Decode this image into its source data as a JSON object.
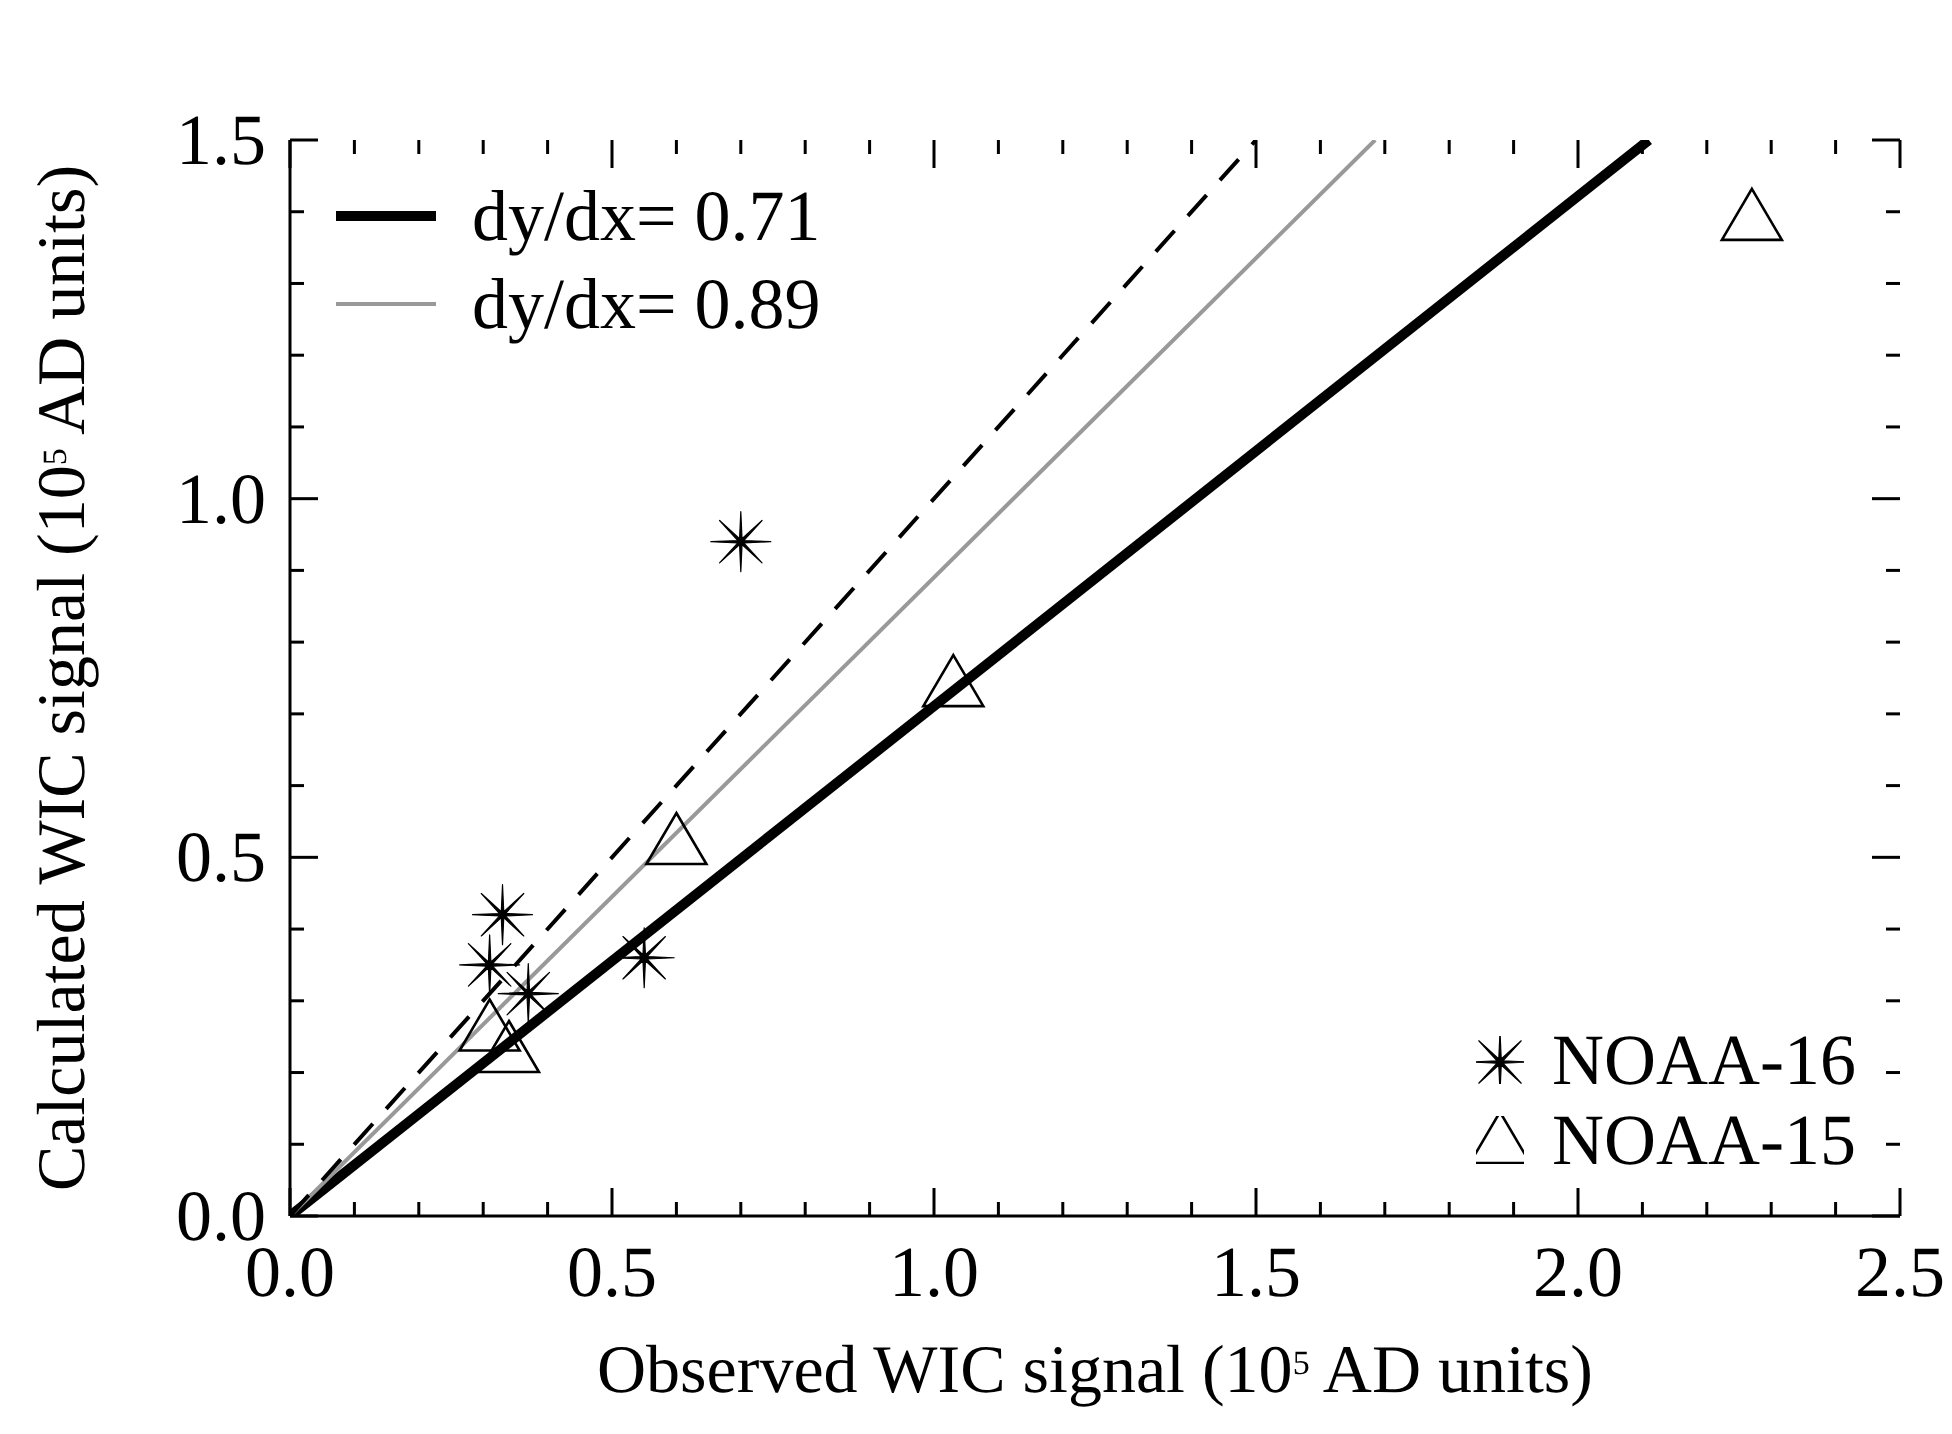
{
  "chart_data": {
    "type": "scatter",
    "xlabel": "Observed WIC signal (10$^{5}$ AD units)",
    "ylabel": "Calculated WIC signal (10$^{5}$ AD units)",
    "xlim": [
      0,
      2.5
    ],
    "ylim": [
      0,
      1.5
    ],
    "xticks": [
      {
        "value": 0,
        "label": "0.0"
      },
      {
        "value": 0.1,
        "label": null
      },
      {
        "value": 0.2,
        "label": null
      },
      {
        "value": 0.3,
        "label": null
      },
      {
        "value": 0.4,
        "label": null
      },
      0.5,
      {
        "value": 0.6,
        "label": null
      },
      {
        "value": 0.7,
        "label": null
      },
      {
        "value": 0.8,
        "label": null
      },
      {
        "value": 0.9,
        "label": null
      },
      {
        "value": 1,
        "label": "1.0"
      },
      {
        "value": 1.1,
        "label": null
      },
      {
        "value": 1.2,
        "label": null
      },
      {
        "value": 1.3,
        "label": null
      },
      {
        "value": 1.4,
        "label": null
      },
      1.5,
      {
        "value": 1.6,
        "label": null
      },
      {
        "value": 1.7,
        "label": null
      },
      {
        "value": 1.8,
        "label": null
      },
      {
        "value": 1.9,
        "label": null
      },
      {
        "value": 2,
        "label": "2.0"
      },
      {
        "value": 2.1,
        "label": null
      },
      {
        "value": 2.2,
        "label": null
      },
      {
        "value": 2.3,
        "label": null
      },
      {
        "value": 2.4,
        "label": null
      },
      2.5
    ],
    "yticks": [
      {
        "value": 0,
        "label": "0.0"
      },
      {
        "value": 0.1,
        "label": null
      },
      {
        "value": 0.2,
        "label": null
      },
      {
        "value": 0.3,
        "label": null
      },
      {
        "value": 0.4,
        "label": null
      },
      0.5,
      {
        "value": 0.6,
        "label": null
      },
      {
        "value": 0.7,
        "label": null
      },
      {
        "value": 0.8,
        "label": null
      },
      {
        "value": 0.9,
        "label": null
      },
      {
        "value": 1,
        "label": "1.0"
      },
      {
        "value": 1.1,
        "label": null
      },
      {
        "value": 1.2,
        "label": null
      },
      {
        "value": 1.3,
        "label": null
      },
      {
        "value": 1.4,
        "label": null
      },
      1.5
    ],
    "grid": false,
    "legend": "top left",
    "series": [
      {
        "type": "line",
        "name": "dy/dx= 0.71",
        "color": "#000000",
        "marker": "none",
        "line_style": "solid",
        "x": [
          0,
          2.11
        ],
        "values": [
          0,
          1.5
        ]
      },
      {
        "type": "line",
        "name": "dy/dx= 0.89",
        "color": "#999999",
        "marker": "none",
        "line_style": "solid",
        "x": [
          0,
          1.685
        ],
        "values": [
          0,
          1.5
        ]
      },
      {
        "type": "line",
        "color": "#000000",
        "marker": "none",
        "line_style": "dashed",
        "x": [
          0,
          1.5
        ],
        "values": [
          0,
          1.5
        ]
      },
      {
        "name": "NOAA-16",
        "color": "#000000",
        "marker": "cross",
        "x": [
          0.33,
          0.31,
          0.37,
          0.55,
          0.7
        ],
        "values": [
          0.42,
          0.35,
          0.31,
          0.36,
          0.94
        ]
      },
      {
        "name": "NOAA-15",
        "color": "#000000",
        "marker": "triangle",
        "x": [
          0.31,
          0.34,
          0.6,
          1.03,
          2.27
        ],
        "values": [
          0.26,
          0.23,
          0.52,
          0.74,
          1.39
        ]
      }
    ]
  }
}
